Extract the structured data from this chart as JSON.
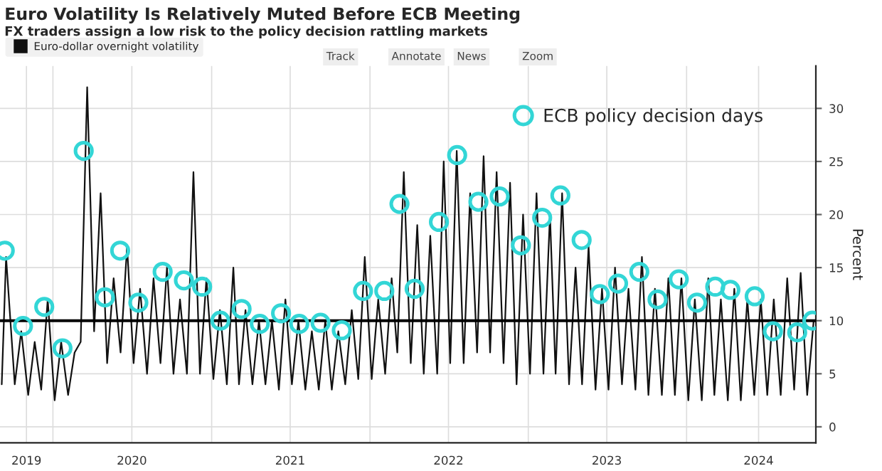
{
  "chart_data": {
    "type": "line",
    "title": "Euro Volatility Is Relatively Muted Before ECB Meeting",
    "subtitle": "FX traders assign a low risk to the policy decision rattling markets",
    "ylabel": "Percent",
    "annotations": [
      "Track",
      "Annotate",
      "News",
      "Zoom"
    ],
    "xlim": [
      "2019-09-01",
      "2024-10-25"
    ],
    "xticks": [
      {
        "value": "2019-11-01",
        "label": "2019"
      },
      {
        "value": "2020-01-01",
        "label": null
      },
      {
        "value": "2020-07-01",
        "label": "2020"
      },
      {
        "value": "2021-01-01",
        "label": null
      },
      {
        "value": "2021-07-01",
        "label": "2021"
      },
      {
        "value": "2022-01-01",
        "label": null
      },
      {
        "value": "2022-07-01",
        "label": "2022"
      },
      {
        "value": "2023-01-01",
        "label": null
      },
      {
        "value": "2023-07-01",
        "label": "2023"
      },
      {
        "value": "2024-01-01",
        "label": null
      },
      {
        "value": "2024-06-15",
        "label": "2024"
      }
    ],
    "ylim": [
      -1.5,
      34
    ],
    "yticks": [
      0,
      5,
      10,
      15,
      20,
      25,
      30
    ],
    "grid": true,
    "legend": "top left",
    "ref_lines": [
      {
        "axis": "y",
        "value": 10,
        "color": "#000000"
      }
    ],
    "series": [
      {
        "name": "Euro-dollar overnight volatility",
        "type": "line",
        "color": "#111111",
        "x": [
          "2019-09-05",
          "2019-09-15",
          "2019-10-05",
          "2019-10-20",
          "2019-11-05",
          "2019-11-20",
          "2019-12-05",
          "2019-12-20",
          "2020-01-05",
          "2020-01-20",
          "2020-02-05",
          "2020-02-20",
          "2020-03-05",
          "2020-03-20",
          "2020-04-05",
          "2020-04-20",
          "2020-05-05",
          "2020-05-20",
          "2020-06-05",
          "2020-06-20",
          "2020-07-05",
          "2020-07-20",
          "2020-08-05",
          "2020-08-20",
          "2020-09-05",
          "2020-09-20",
          "2020-10-05",
          "2020-10-20",
          "2020-11-05",
          "2020-11-20",
          "2020-12-05",
          "2020-12-20",
          "2021-01-05",
          "2021-01-20",
          "2021-02-05",
          "2021-02-20",
          "2021-03-05",
          "2021-03-20",
          "2021-04-05",
          "2021-04-20",
          "2021-05-05",
          "2021-05-20",
          "2021-06-05",
          "2021-06-20",
          "2021-07-05",
          "2021-07-20",
          "2021-08-05",
          "2021-08-20",
          "2021-09-05",
          "2021-09-20",
          "2021-10-05",
          "2021-10-20",
          "2021-11-05",
          "2021-11-20",
          "2021-12-05",
          "2021-12-20",
          "2022-01-05",
          "2022-01-20",
          "2022-02-05",
          "2022-02-20",
          "2022-03-05",
          "2022-03-20",
          "2022-04-05",
          "2022-04-20",
          "2022-05-05",
          "2022-05-20",
          "2022-06-05",
          "2022-06-20",
          "2022-07-05",
          "2022-07-20",
          "2022-08-05",
          "2022-08-20",
          "2022-09-05",
          "2022-09-20",
          "2022-10-05",
          "2022-10-20",
          "2022-11-05",
          "2022-11-20",
          "2022-12-05",
          "2022-12-20",
          "2023-01-05",
          "2023-01-20",
          "2023-02-05",
          "2023-02-20",
          "2023-03-05",
          "2023-03-20",
          "2023-04-05",
          "2023-04-20",
          "2023-05-05",
          "2023-05-20",
          "2023-06-05",
          "2023-06-20",
          "2023-07-05",
          "2023-07-20",
          "2023-08-05",
          "2023-08-20",
          "2023-09-05",
          "2023-09-20",
          "2023-10-05",
          "2023-10-20",
          "2023-11-05",
          "2023-11-20",
          "2023-12-05",
          "2023-12-20",
          "2024-01-05",
          "2024-01-20",
          "2024-02-05",
          "2024-02-20",
          "2024-03-05",
          "2024-03-20",
          "2024-04-05",
          "2024-04-20",
          "2024-05-05",
          "2024-05-20",
          "2024-06-05",
          "2024-06-20",
          "2024-07-05",
          "2024-07-20",
          "2024-08-05",
          "2024-08-20",
          "2024-09-05",
          "2024-09-20",
          "2024-10-05",
          "2024-10-20"
        ],
        "values": [
          4,
          16,
          4,
          9,
          3,
          8,
          3.5,
          12,
          2.5,
          8,
          3,
          7,
          8,
          32,
          9,
          22,
          6,
          14,
          7,
          17,
          6,
          13,
          5,
          14,
          6,
          15,
          5,
          12,
          5,
          24,
          5,
          14,
          4.5,
          11,
          4,
          15,
          4,
          11,
          4,
          10,
          4,
          10,
          3.5,
          12,
          4,
          10,
          3.5,
          9,
          3.5,
          10,
          3.5,
          9,
          4,
          11,
          4.5,
          16,
          4.5,
          12,
          5,
          14,
          7,
          24,
          6,
          19,
          5,
          18,
          5,
          25,
          6,
          26,
          6,
          22,
          7,
          25.5,
          7,
          24,
          6,
          23,
          4,
          20,
          5,
          22,
          5,
          20,
          5,
          22,
          4,
          15,
          4,
          17,
          3.5,
          13,
          3.5,
          15,
          4,
          13,
          3.5,
          16,
          3,
          13,
          3,
          14,
          3,
          14,
          2.5,
          12,
          2.5,
          14,
          3,
          12,
          2.5,
          13,
          2.5,
          12,
          3,
          12,
          3,
          12,
          3,
          14,
          3.5,
          14.5,
          3,
          10
        ]
      },
      {
        "name": "ECB policy decision days",
        "type": "scatter",
        "color": "#33d6d6",
        "marker": "circle",
        "x": [
          "2019-09-12",
          "2019-10-24",
          "2019-12-12",
          "2020-01-23",
          "2020-03-12",
          "2020-04-30",
          "2020-06-04",
          "2020-07-16",
          "2020-09-10",
          "2020-10-29",
          "2020-12-10",
          "2021-01-21",
          "2021-03-11",
          "2021-04-22",
          "2021-06-10",
          "2021-07-22",
          "2021-09-09",
          "2021-10-28",
          "2021-12-16",
          "2022-02-03",
          "2022-03-10",
          "2022-04-14",
          "2022-06-09",
          "2022-07-21",
          "2022-09-08",
          "2022-10-27",
          "2022-12-15",
          "2023-02-02",
          "2023-03-16",
          "2023-05-04",
          "2023-06-15",
          "2023-07-27",
          "2023-09-14",
          "2023-10-26",
          "2023-12-14",
          "2024-01-25",
          "2024-03-07",
          "2024-04-11",
          "2024-06-06",
          "2024-07-18",
          "2024-09-12",
          "2024-10-17"
        ],
        "values": [
          16.6,
          9.5,
          11.3,
          7.4,
          26,
          12.2,
          16.6,
          11.7,
          14.6,
          13.8,
          13.2,
          10,
          11.1,
          9.7,
          10.7,
          9.7,
          9.8,
          9.1,
          12.8,
          12.8,
          21,
          13,
          19.3,
          25.6,
          21.2,
          21.7,
          17.1,
          19.7,
          21.8,
          17.6,
          12.5,
          13.5,
          14.6,
          12,
          13.9,
          11.7,
          13.2,
          12.9,
          12.3,
          9,
          8.9,
          10
        ]
      }
    ]
  }
}
